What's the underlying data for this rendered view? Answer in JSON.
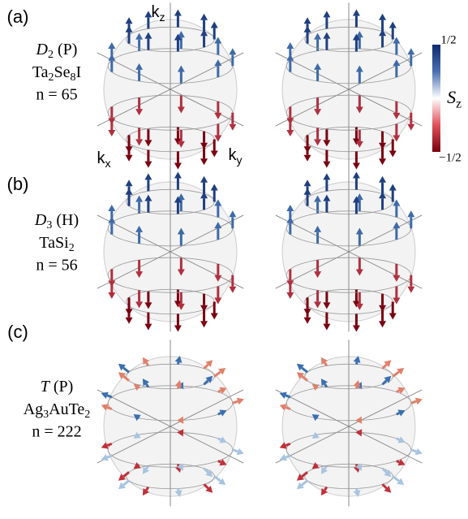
{
  "panels": [
    {
      "tag": "(a)",
      "group": {
        "base": "D",
        "sub": "2",
        "rest": " (P)"
      },
      "formula": [
        {
          "base": "Ta",
          "sub": "2"
        },
        {
          "base": "Se",
          "sub": "8"
        },
        {
          "base": "I",
          "sub": ""
        }
      ],
      "count": "n = 65"
    },
    {
      "tag": "(b)",
      "group": {
        "base": "D",
        "sub": "3",
        "rest": " (H)"
      },
      "formula": [
        {
          "base": "Ta",
          "sub": ""
        },
        {
          "base": "Si",
          "sub": "2"
        }
      ],
      "count": "n = 56"
    },
    {
      "tag": "(c)",
      "group": {
        "base": "T",
        "sub": "",
        "rest": " (P)"
      },
      "formula": [
        {
          "base": "Ag",
          "sub": "3"
        },
        {
          "base": "Au",
          "sub": ""
        },
        {
          "base": "Te",
          "sub": "2"
        }
      ],
      "count": "n = 222"
    }
  ],
  "axes": {
    "z": {
      "base": "k",
      "sub": "z"
    },
    "x": {
      "base": "k",
      "sub": "x"
    },
    "y": {
      "base": "k",
      "sub": "y"
    }
  },
  "colorbar": {
    "label": {
      "base": "S",
      "sub": "z"
    },
    "top": "1/2",
    "bottom": "−1/2"
  }
}
